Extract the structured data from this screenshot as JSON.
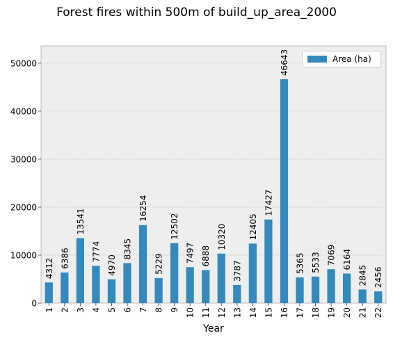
{
  "chart_data": {
    "type": "bar",
    "title": "Forest fires within 500m of build_up_area_2000",
    "xlabel": "Year",
    "ylabel": "",
    "categories": [
      "1",
      "2",
      "3",
      "4",
      "5",
      "6",
      "7",
      "8",
      "9",
      "10",
      "11",
      "12",
      "13",
      "14",
      "15",
      "16",
      "17",
      "18",
      "19",
      "20",
      "21",
      "22"
    ],
    "series": [
      {
        "name": "Area (ha)",
        "values": [
          4312,
          6386,
          13541,
          7774,
          4970,
          8345,
          16254,
          5229,
          12502,
          7497,
          6888,
          10320,
          3787,
          12405,
          17427,
          46643,
          5365,
          5533,
          7069,
          6164,
          2845,
          2456
        ]
      }
    ],
    "data_labels": [
      "4312",
      "6386",
      "13541",
      "7774",
      "4970",
      "8345",
      "16254",
      "5229",
      "12502",
      "7497",
      "6888",
      "10320",
      "3787",
      "12405",
      "17427",
      "46643",
      "5365",
      "5533",
      "7069",
      "6164",
      "2845",
      "2456"
    ],
    "yticks": [
      0,
      10000,
      20000,
      30000,
      40000,
      50000
    ],
    "ylim": [
      0,
      53600
    ],
    "grid": true,
    "legend_position": "top-right",
    "colors": {
      "bar": "#348abd",
      "background": "#eeeeee",
      "grid": "#b0b0b0"
    }
  }
}
